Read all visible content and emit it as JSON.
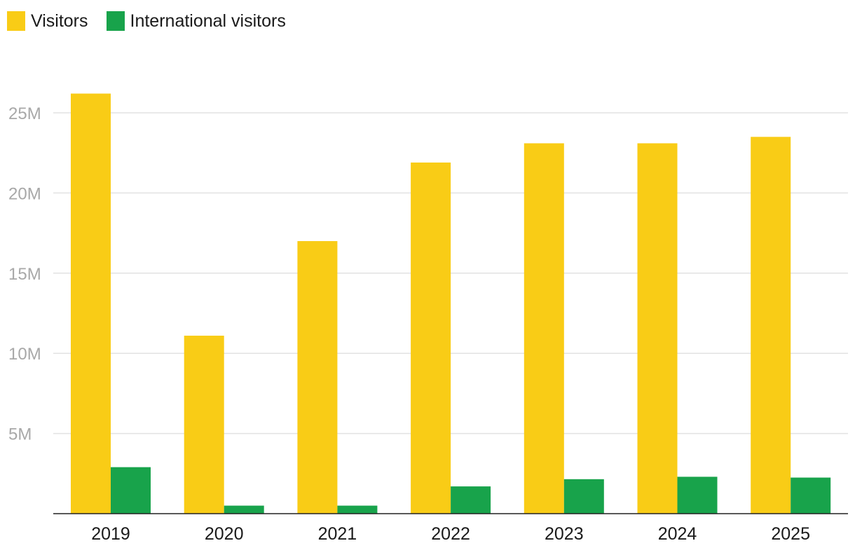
{
  "chart_data": {
    "type": "bar",
    "title": "",
    "xlabel": "",
    "ylabel": "",
    "categories": [
      "2019",
      "2020",
      "2021",
      "2022",
      "2023",
      "2024",
      "2025"
    ],
    "series": [
      {
        "name": "Visitors",
        "color": "#f9cc16",
        "values": [
          26200000,
          11100000,
          17000000,
          21900000,
          23100000,
          23100000,
          23500000
        ]
      },
      {
        "name": "International visitors",
        "color": "#18a34b",
        "values": [
          2900000,
          500000,
          500000,
          1700000,
          2150000,
          2300000,
          2250000
        ]
      }
    ],
    "ylim": [
      0,
      27000000
    ],
    "yticks": [
      {
        "value": 5000000,
        "label": "5M"
      },
      {
        "value": 10000000,
        "label": "10M"
      },
      {
        "value": 15000000,
        "label": "15M"
      },
      {
        "value": 20000000,
        "label": "20M"
      },
      {
        "value": 25000000,
        "label": "25M"
      }
    ],
    "grid": true,
    "legend_position": "top-left"
  }
}
